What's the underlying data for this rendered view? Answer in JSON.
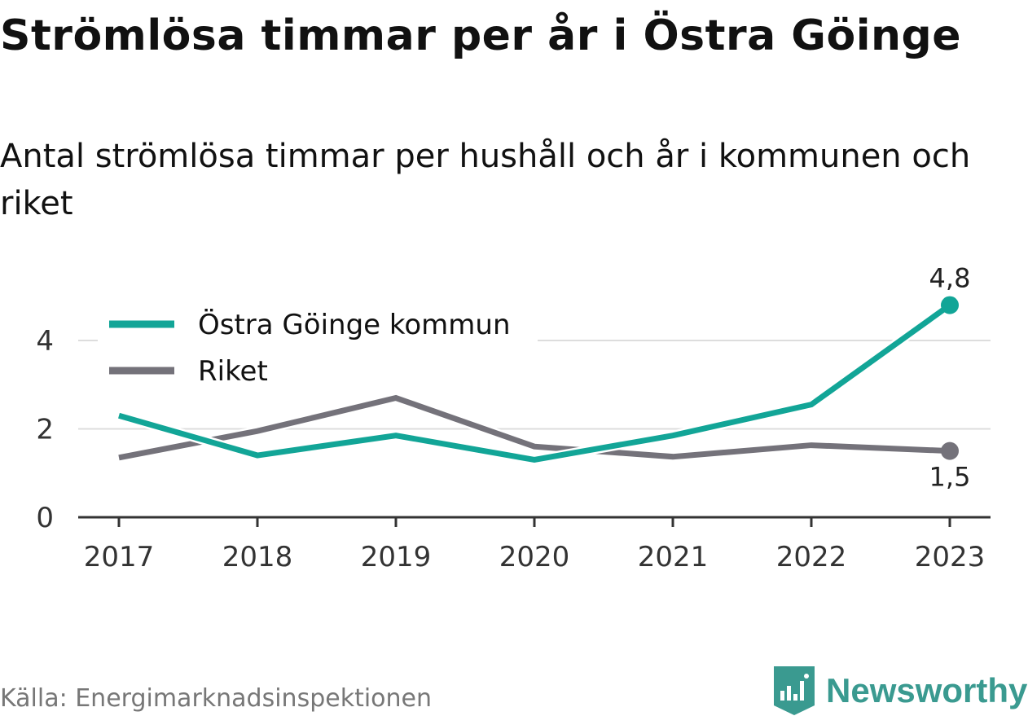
{
  "title": "Strömlösa timmar per år i Östra Göinge",
  "subtitle": "Antal strömlösa timmar per hushåll och år i kommunen och riket",
  "source": "Källa: Energimarknadsinspektionen",
  "brand": {
    "name": "Newsworthy",
    "icon": "newsworthy-logo-icon",
    "color": "#3a9a90"
  },
  "chart_data": {
    "type": "line",
    "x": [
      "2017",
      "2018",
      "2019",
      "2020",
      "2021",
      "2022",
      "2023"
    ],
    "ylim": [
      0,
      5
    ],
    "yticks": [
      "0",
      "2",
      "4"
    ],
    "grid": true,
    "legend_position": "top-left",
    "series": [
      {
        "name": "Östra Göinge kommun",
        "color": "#12a597",
        "values": [
          2.3,
          1.4,
          1.85,
          1.3,
          1.85,
          2.55,
          4.8
        ],
        "end_label": "4,8"
      },
      {
        "name": "Riket",
        "color": "#74727a",
        "values": [
          1.35,
          1.95,
          2.7,
          1.6,
          1.37,
          1.63,
          1.5
        ],
        "end_label": "1,5"
      }
    ]
  }
}
